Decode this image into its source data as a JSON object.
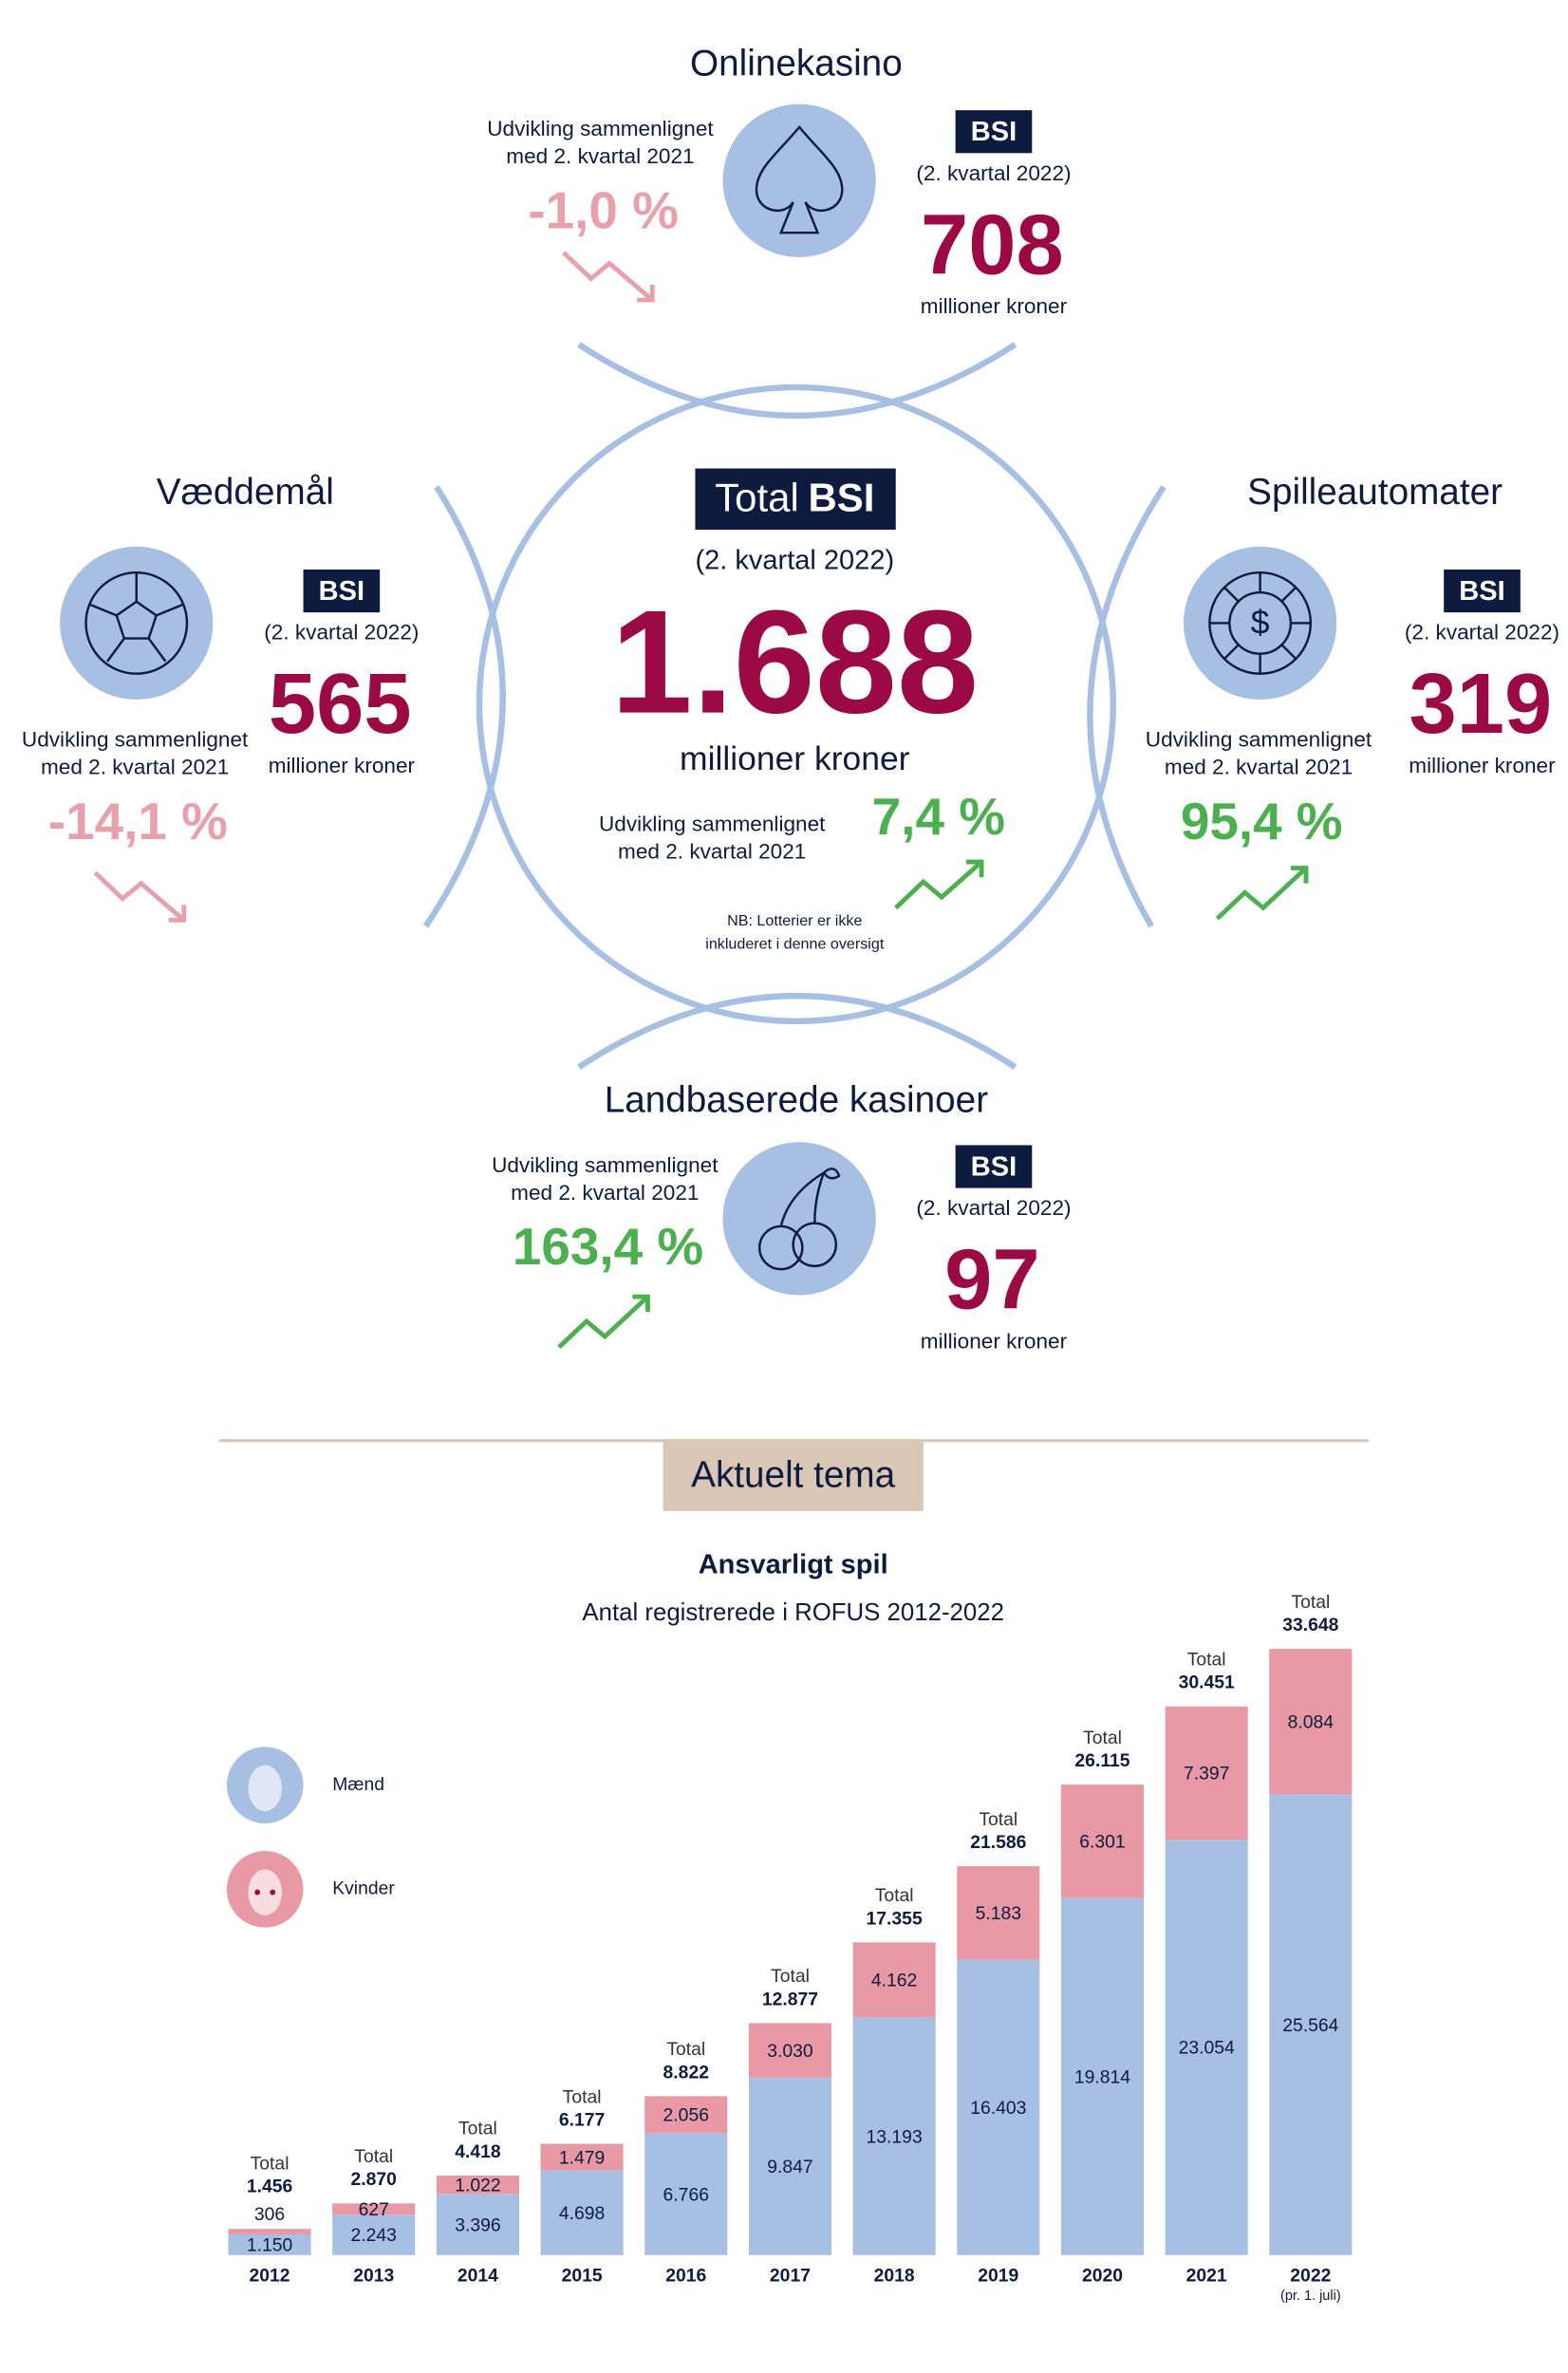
{
  "total": {
    "title_prefix": "Total",
    "title_bold": "BSI",
    "period": "(2. kvartal 2022)",
    "value": "1.688",
    "unit": "millioner kroner",
    "change_label": [
      "Udvikling sammenlignet",
      "med 2. kvartal 2021"
    ],
    "change": "7,4 %",
    "note": [
      "NB: Lotterier er ikke",
      "inkluderet i denne oversigt"
    ]
  },
  "segments": [
    {
      "name": "Onlinekasino",
      "badge": "BSI",
      "period": "(2. kvartal 2022)",
      "value": "708",
      "unit": "millioner kroner",
      "change_label": [
        "Udvikling sammenlignet",
        "med 2. kvartal 2021"
      ],
      "change": "-1,0 %"
    },
    {
      "name": "Væddemål",
      "badge": "BSI",
      "period": "(2. kvartal 2022)",
      "value": "565",
      "unit": "millioner kroner",
      "change_label": [
        "Udvikling sammenlignet",
        "med 2. kvartal 2021"
      ],
      "change": "-14,1 %"
    },
    {
      "name": "Spilleautomater",
      "badge": "BSI",
      "period": "(2. kvartal 2022)",
      "value": "319",
      "unit": "millioner kroner",
      "change_label": [
        "Udvikling sammenlignet",
        "med 2. kvartal 2021"
      ],
      "change": "95,4 %"
    },
    {
      "name": "Landbaserede kasinoer",
      "badge": "BSI",
      "period": "(2. kvartal 2022)",
      "value": "97",
      "unit": "millioner kroner",
      "change_label": [
        "Udvikling sammenlignet",
        "med 2. kvartal 2021"
      ],
      "change": "163,4 %"
    }
  ],
  "section_title": "Aktuelt tema",
  "chart_data": {
    "type": "bar",
    "stacked": true,
    "title": "Ansvarligt spil",
    "subtitle": "Antal registrerede i ROFUS 2012-2022",
    "categories": [
      "2012",
      "2013",
      "2014",
      "2015",
      "2016",
      "2017",
      "2018",
      "2019",
      "2020",
      "2021",
      "2022"
    ],
    "category_note": "(pr. 1. juli)",
    "series": [
      {
        "name": "Mænd",
        "color": "#a7bfe3",
        "values": [
          1150,
          2243,
          3396,
          4698,
          6766,
          9847,
          13193,
          16403,
          19814,
          23054,
          25564
        ],
        "value_labels": [
          "1.150",
          "2.243",
          "3.396",
          "4.698",
          "6.766",
          "9.847",
          "13.193",
          "16.403",
          "19.814",
          "23.054",
          "25.564"
        ]
      },
      {
        "name": "Kvinder",
        "color": "#e899a5",
        "values": [
          306,
          627,
          1022,
          1479,
          2056,
          3030,
          4162,
          5183,
          6301,
          7397,
          8084
        ],
        "value_labels": [
          "306",
          "627",
          "1.022",
          "1.479",
          "2.056",
          "3.030",
          "4.162",
          "5.183",
          "6.301",
          "7.397",
          "8.084"
        ]
      }
    ],
    "total_label": "Total",
    "totals": [
      1456,
      2870,
      4418,
      6177,
      8822,
      12877,
      17355,
      21586,
      26115,
      30451,
      33648
    ],
    "total_value_labels": [
      "1.456",
      "2.870",
      "4.418",
      "6.177",
      "8.822",
      "12.877",
      "17.355",
      "21.586",
      "26.115",
      "30.451",
      "33.648"
    ]
  }
}
